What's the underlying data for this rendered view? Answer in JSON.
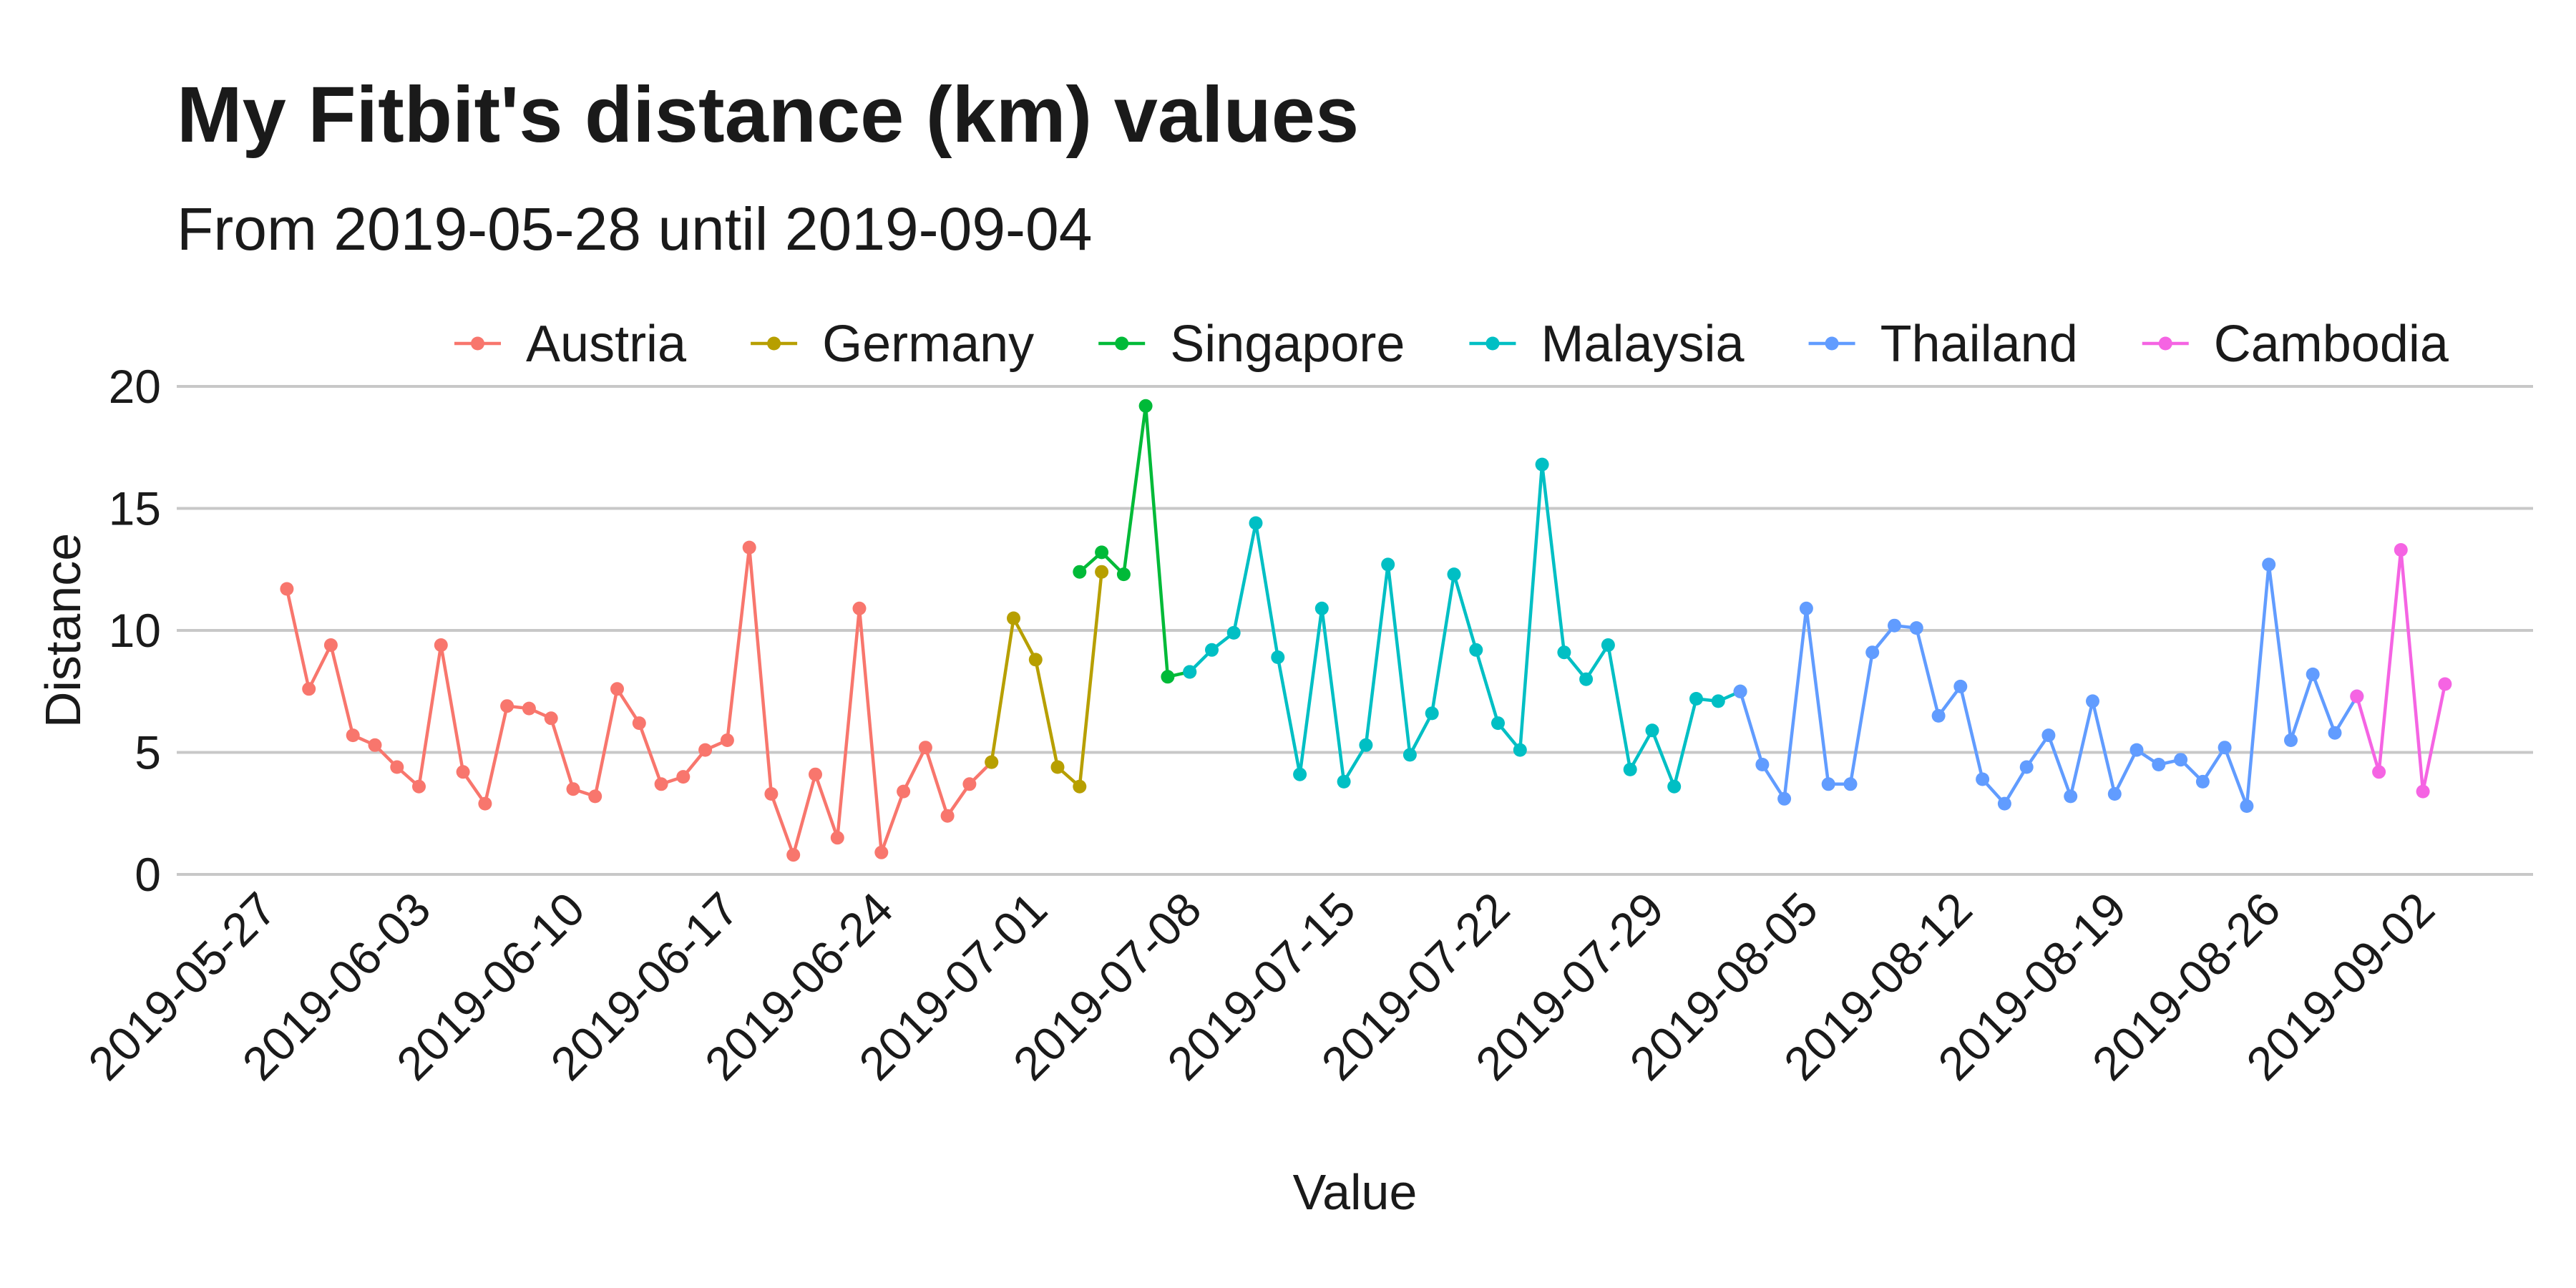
{
  "chart_data": {
    "type": "line",
    "title": "My Fitbit's distance (km) values",
    "subtitle": "From 2019-05-28 until 2019-09-04",
    "xlabel": "Value",
    "ylabel": "Distance",
    "x_type": "date",
    "xlim": [
      "2019-05-23",
      "2019-09-07"
    ],
    "ylim": [
      0,
      20
    ],
    "y_ticks": [
      "0",
      "5",
      "10",
      "15",
      "20"
    ],
    "x_ticks": [
      "2019-05-27",
      "2019-06-03",
      "2019-06-10",
      "2019-06-17",
      "2019-06-24",
      "2019-07-01",
      "2019-07-08",
      "2019-07-15",
      "2019-07-22",
      "2019-07-29",
      "2019-08-05",
      "2019-08-12",
      "2019-08-19",
      "2019-08-26",
      "2019-09-02"
    ],
    "grid": "horizontal major",
    "legend_position": "top",
    "series": [
      {
        "name": "Austria",
        "color": "#F8766D",
        "start": "2019-05-28",
        "values": [
          11.7,
          7.6,
          9.4,
          5.7,
          5.3,
          4.4,
          3.6,
          9.4,
          4.2,
          2.9,
          6.9,
          6.8,
          6.4,
          3.5,
          3.2,
          7.6,
          6.2,
          3.7,
          4.0,
          5.1,
          5.5,
          13.4,
          3.3,
          0.8,
          4.1,
          1.5,
          10.9,
          0.9,
          3.4,
          5.2,
          2.4,
          3.7,
          4.6
        ]
      },
      {
        "name": "Germany",
        "color": "#B79F00",
        "start": "2019-06-29",
        "values": [
          4.6,
          10.5,
          8.8,
          4.4,
          3.6,
          12.4
        ]
      },
      {
        "name": "Singapore",
        "color": "#00BA38",
        "start": "2019-07-03",
        "values": [
          12.4,
          13.2,
          12.3,
          19.2,
          8.1,
          8.3
        ]
      },
      {
        "name": "Malaysia",
        "color": "#00BFC4",
        "start": "2019-07-08",
        "values": [
          8.3,
          9.2,
          9.9,
          14.4,
          8.9,
          4.1,
          10.9,
          3.8,
          5.3,
          12.7,
          4.9,
          6.6,
          12.3,
          9.2,
          6.2,
          5.1,
          16.8,
          9.1,
          8.0,
          9.4,
          4.3,
          5.9,
          3.6,
          7.2,
          7.1,
          7.5
        ]
      },
      {
        "name": "Thailand",
        "color": "#619CFF",
        "start": "2019-08-02",
        "values": [
          7.5,
          4.5,
          3.1,
          10.9,
          3.7,
          3.7,
          9.1,
          10.2,
          10.1,
          6.5,
          7.7,
          3.9,
          2.9,
          4.4,
          5.7,
          3.2,
          7.1,
          3.3,
          5.1,
          4.5,
          4.7,
          3.8,
          5.2,
          2.8,
          12.7,
          5.5,
          8.2,
          5.8,
          7.3
        ]
      },
      {
        "name": "Cambodia",
        "color": "#F564E3",
        "start": "2019-08-30",
        "values": [
          7.3,
          4.2,
          13.3,
          3.4,
          7.8
        ]
      }
    ]
  }
}
